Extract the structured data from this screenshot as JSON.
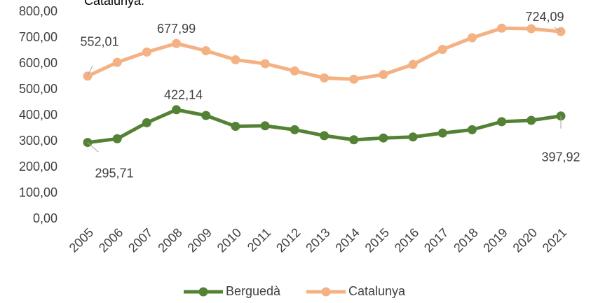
{
  "chart_data": {
    "type": "line",
    "title": "Catalunya.",
    "categories": [
      "2005",
      "2006",
      "2007",
      "2008",
      "2009",
      "2010",
      "2011",
      "2012",
      "2013",
      "2014",
      "2015",
      "2016",
      "2017",
      "2018",
      "2019",
      "2020",
      "2021"
    ],
    "series": [
      {
        "name": "Berguedà",
        "color": "#548235",
        "values": [
          295.71,
          310,
          372,
          422.14,
          400,
          358,
          360,
          345,
          322,
          306,
          313,
          317,
          332,
          345,
          376,
          381,
          397.92
        ],
        "value_labels": [
          "295,71",
          null,
          null,
          "422,14",
          null,
          null,
          null,
          null,
          null,
          null,
          null,
          null,
          null,
          null,
          null,
          null,
          "397,92"
        ]
      },
      {
        "name": "Catalunya",
        "color": "#f4b183",
        "values": [
          552.01,
          605,
          645,
          677.99,
          650,
          615,
          600,
          572,
          545,
          540,
          558,
          597,
          655,
          700,
          737,
          735,
          724.09
        ],
        "value_labels": [
          "552,01",
          null,
          null,
          "677,99",
          null,
          null,
          null,
          null,
          null,
          null,
          null,
          null,
          null,
          null,
          null,
          null,
          "724,09"
        ]
      }
    ],
    "ylim": [
      0,
      800
    ],
    "yticks": [
      {
        "value": 0,
        "label": "0,00"
      },
      {
        "value": 100,
        "label": "100,00"
      },
      {
        "value": 200,
        "label": "200,00"
      },
      {
        "value": 300,
        "label": "300,00"
      },
      {
        "value": 400,
        "label": "400,00"
      },
      {
        "value": 500,
        "label": "500,00"
      },
      {
        "value": 600,
        "label": "600,00"
      },
      {
        "value": 700,
        "label": "700,00"
      },
      {
        "value": 800,
        "label": "800,00"
      }
    ],
    "grid": false,
    "legend": "bottom"
  }
}
